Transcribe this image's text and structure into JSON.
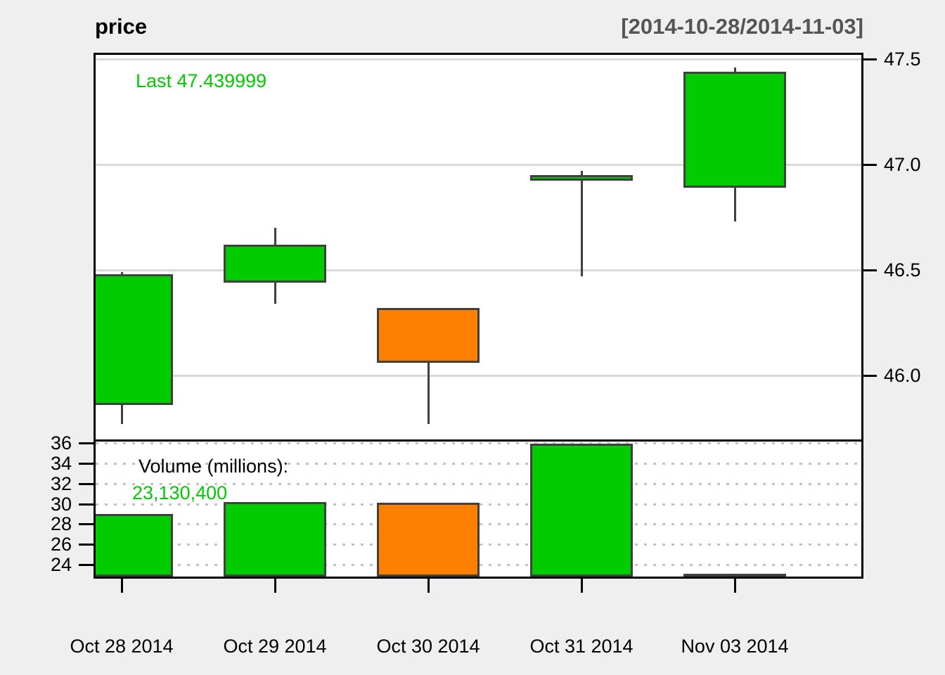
{
  "header": {
    "title": "price",
    "range": "[2014-10-28/2014-11-03]"
  },
  "price_panel": {
    "last_label": "Last 47.439999"
  },
  "volume_panel": {
    "label": "Volume (millions):",
    "value": "23,130,400"
  },
  "chart_data": {
    "type": "candlestick",
    "title": "price",
    "date_range_label": "[2014-10-28/2014-11-03]",
    "last_price": 47.439999,
    "last_volume": 23130400,
    "categories": [
      "Oct 28 2014",
      "Oct 29 2014",
      "Oct 30 2014",
      "Oct 31 2014",
      "Nov 03 2014"
    ],
    "candles": [
      {
        "date": "Oct 28 2014",
        "open": 45.86,
        "high": 46.49,
        "low": 45.77,
        "close": 46.48,
        "direction": "up"
      },
      {
        "date": "Oct 29 2014",
        "open": 46.44,
        "high": 46.7,
        "low": 46.34,
        "close": 46.62,
        "direction": "up"
      },
      {
        "date": "Oct 30 2014",
        "open": 46.32,
        "high": 46.32,
        "low": 45.77,
        "close": 46.06,
        "direction": "down"
      },
      {
        "date": "Oct 31 2014",
        "open": 46.94,
        "high": 46.97,
        "low": 46.47,
        "close": 46.95,
        "direction": "up"
      },
      {
        "date": "Nov 03 2014",
        "open": 46.89,
        "high": 47.46,
        "low": 46.73,
        "close": 47.44,
        "direction": "up"
      }
    ],
    "volumes_millions": [
      29.0,
      30.2,
      30.1,
      35.9,
      23.1304
    ],
    "price_axis": {
      "side": "right",
      "grid": "solid",
      "ticks": [
        47.5,
        47.0,
        46.5,
        46.0
      ],
      "labels": [
        "47.5",
        "47.0",
        "46.5",
        "46.0"
      ],
      "visible_range": [
        45.7,
        47.53
      ]
    },
    "volume_axis": {
      "side": "left",
      "grid": "dotted",
      "unit": "millions",
      "ticks": [
        36,
        34,
        32,
        30,
        28,
        26,
        24
      ],
      "labels": [
        "36",
        "34",
        "32",
        "30",
        "28",
        "26",
        "24"
      ],
      "visible_range": [
        22.6,
        36.4
      ]
    },
    "colors": {
      "up": "#00CC00",
      "down": "#FF7F00",
      "outline": "#404040",
      "grid_solid": "#D9D9D9",
      "grid_dotted": "#C3C3C3",
      "accent_text": "#00CC00",
      "range_text": "#555555",
      "axis": "#000000"
    }
  }
}
